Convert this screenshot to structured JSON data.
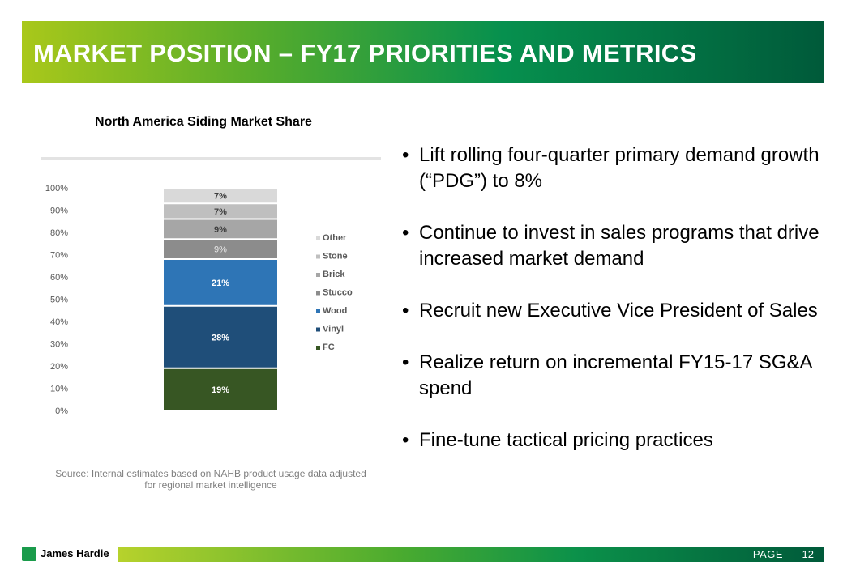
{
  "header": {
    "title": "MARKET POSITION – FY17 PRIORITIES AND METRICS"
  },
  "chart_data": {
    "type": "bar",
    "stacked": true,
    "title": "North America Siding Market Share",
    "categories": [
      ""
    ],
    "series": [
      {
        "name": "FC",
        "values": [
          19
        ],
        "label": "19%",
        "color": "#375623"
      },
      {
        "name": "Vinyl",
        "values": [
          28
        ],
        "label": "28%",
        "color": "#1f4e79"
      },
      {
        "name": "Wood",
        "values": [
          21
        ],
        "label": "21%",
        "color": "#2e75b6"
      },
      {
        "name": "Stucco",
        "values": [
          9
        ],
        "label": "9%",
        "color": "#8c8c8c"
      },
      {
        "name": "Brick",
        "values": [
          9
        ],
        "label": "9%",
        "color": "#a6a6a6"
      },
      {
        "name": "Stone",
        "values": [
          7
        ],
        "label": "7%",
        "color": "#bfbfbf"
      },
      {
        "name": "Other",
        "values": [
          7
        ],
        "label": "7%",
        "color": "#d9d9d9"
      }
    ],
    "y_ticks": [
      "0%",
      "10%",
      "20%",
      "30%",
      "40%",
      "50%",
      "60%",
      "70%",
      "80%",
      "90%",
      "100%"
    ],
    "ylim": [
      0,
      100
    ],
    "legend_order": [
      "Other",
      "Stone",
      "Brick",
      "Stucco",
      "Wood",
      "Vinyl",
      "FC"
    ],
    "legend_position": "right"
  },
  "source_note": {
    "line1": "Source: Internal estimates based on NAHB product usage data adjusted",
    "line2": "for regional market intelligence"
  },
  "bullets": [
    "Lift rolling four-quarter primary demand growth (“PDG”) to 8%",
    "Continue to invest in sales programs that drive increased market demand",
    "Recruit new Executive Vice President of Sales",
    "Realize return on incremental FY15-17 SG&A spend",
    "Fine-tune tactical pricing practices"
  ],
  "bullet_glyph": "•",
  "footer": {
    "brand": "James Hardie",
    "page_label": "PAGE",
    "page_number": "12"
  }
}
